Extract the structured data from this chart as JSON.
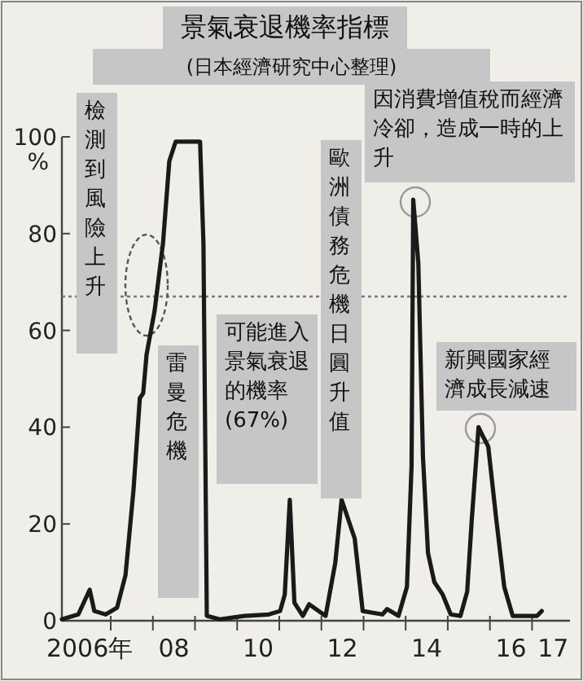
{
  "chart_data": {
    "type": "line",
    "title": "景氣衰退機率指標",
    "subtitle": "(日本經濟研究中心整理)",
    "annotations": [
      "檢測到風險上升",
      "雷曼危機",
      "可能進入景氣衰退的機率(67%)",
      "歐洲債務危機日圓升值",
      "因消費增值稅而經濟冷卻，造成一時的上升",
      "新興國家經濟成長減速"
    ],
    "x": [
      2005.34,
      2005.73,
      2006.0,
      2006.11,
      2006.38,
      2006.65,
      2006.85,
      2007.04,
      2007.19,
      2007.27,
      2007.35,
      2007.54,
      2007.74,
      2007.89,
      2008.04,
      2008.62,
      2008.7,
      2008.78,
      2009.09,
      2009.67,
      2010.25,
      2010.52,
      2010.63,
      2010.75,
      2010.86,
      2011.06,
      2011.21,
      2011.6,
      2011.83,
      2011.98,
      2012.29,
      2012.48,
      2012.95,
      2013.06,
      2013.33,
      2013.53,
      2013.64,
      2013.68,
      2013.8,
      2013.91,
      2014.03,
      2014.18,
      2014.38,
      2014.57,
      2014.8,
      2014.96,
      2015.07,
      2015.23,
      2015.34,
      2015.46,
      2015.65,
      2015.84,
      2016.04,
      2016.62,
      2016.73
    ],
    "series": [
      {
        "color": "#1a1a1a",
        "values": [
          0.3,
          1.3,
          6.4,
          2,
          1.3,
          2.7,
          9.4,
          27,
          46,
          47,
          55,
          64,
          78,
          95,
          99,
          99,
          78,
          1,
          0.3,
          1,
          1.3,
          2,
          5.4,
          25,
          3.7,
          1,
          3.4,
          1,
          12,
          25,
          17,
          2,
          1.3,
          2.4,
          1,
          7,
          32,
          87,
          74,
          34,
          14,
          8,
          5.4,
          1.3,
          1,
          6,
          21,
          40,
          38,
          36,
          21,
          7,
          1,
          1,
          2
        ]
      }
    ],
    "xlim": [
      2005.34,
      2017.4
    ],
    "ylim": [
      0,
      100
    ],
    "xticks": [
      {
        "value": 2006,
        "label": "2006年"
      },
      {
        "value": 2006.5,
        "label": null
      },
      {
        "value": 2007.5,
        "label": null
      },
      {
        "value": 2008,
        "label": "08"
      },
      {
        "value": 2008.5,
        "label": null
      },
      {
        "value": 2009.5,
        "label": null
      },
      {
        "value": 2010,
        "label": "10"
      },
      {
        "value": 2010.5,
        "label": null
      },
      {
        "value": 2011.5,
        "label": null
      },
      {
        "value": 2012,
        "label": "12"
      },
      {
        "value": 2012.5,
        "label": null
      },
      {
        "value": 2013.5,
        "label": null
      },
      {
        "value": 2014,
        "label": "14"
      },
      {
        "value": 2014.5,
        "label": null
      },
      {
        "value": 2015.5,
        "label": null
      },
      {
        "value": 2016,
        "label": "16"
      },
      {
        "value": 2016.5,
        "label": null
      },
      {
        "value": 2017,
        "label": "17"
      }
    ],
    "yticks": [
      0,
      20,
      40,
      60,
      80,
      {
        "value": 100,
        "label": "100%"
      }
    ],
    "ref_lines": [
      {
        "axis": "y",
        "value": 67,
        "color": "#777777",
        "line_style": "dotted"
      }
    ]
  }
}
